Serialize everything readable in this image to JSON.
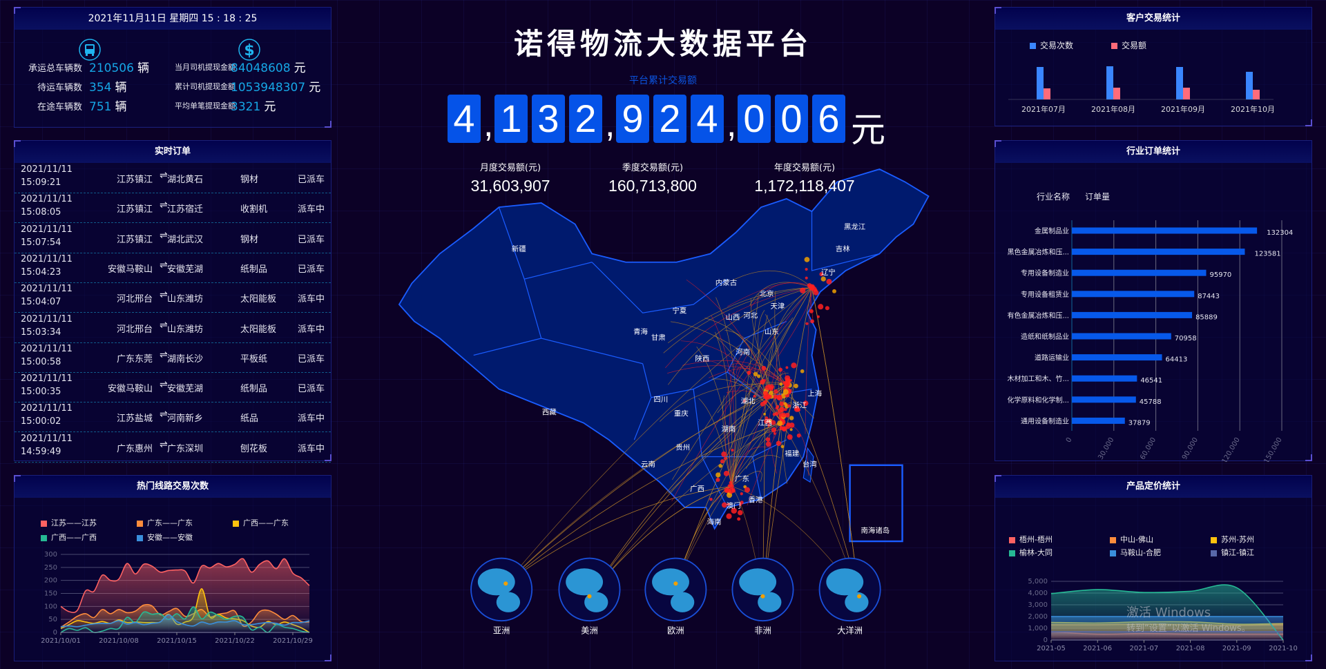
{
  "title": "诺得物流大数据平台",
  "datetime": "2021年11月11日 星期四 15 : 18 : 25",
  "vehicles": {
    "icon": "truck-icon",
    "items": [
      {
        "label": "承运总车辆数",
        "value": "210506",
        "unit": "辆"
      },
      {
        "label": "待运车辆数",
        "value": "354",
        "unit": "辆"
      },
      {
        "label": "在途车辆数",
        "value": "751",
        "unit": "辆"
      }
    ]
  },
  "withdrawals": {
    "icon": "dollar-icon",
    "items": [
      {
        "label": "当月司机提现金额",
        "value": "84048608",
        "unit": "元"
      },
      {
        "label": "累计司机提现金额",
        "value": "1053948307",
        "unit": "元"
      },
      {
        "label": "平均单笔提现金额",
        "value": "3321",
        "unit": "元"
      }
    ]
  },
  "orders": {
    "title": "实时订单",
    "arrow_icon": "route-arrow-icon",
    "rows": [
      {
        "date": "2021/11/11",
        "time": "15:09:21",
        "from": "江苏镇江",
        "to": "湖北黄石",
        "cargo": "钢材",
        "status": "已派车"
      },
      {
        "date": "2021/11/11",
        "time": "15:08:05",
        "from": "江苏镇江",
        "to": "江苏宿迁",
        "cargo": "收割机",
        "status": "派车中"
      },
      {
        "date": "2021/11/11",
        "time": "15:07:54",
        "from": "江苏镇江",
        "to": "湖北武汉",
        "cargo": "钢材",
        "status": "已派车"
      },
      {
        "date": "2021/11/11",
        "time": "15:04:23",
        "from": "安徽马鞍山",
        "to": "安徽芜湖",
        "cargo": "纸制品",
        "status": "已派车"
      },
      {
        "date": "2021/11/11",
        "time": "15:04:07",
        "from": "河北邢台",
        "to": "山东潍坊",
        "cargo": "太阳能板",
        "status": "派车中"
      },
      {
        "date": "2021/11/11",
        "time": "15:03:34",
        "from": "河北邢台",
        "to": "山东潍坊",
        "cargo": "太阳能板",
        "status": "派车中"
      },
      {
        "date": "2021/11/11",
        "time": "15:00:58",
        "from": "广东东莞",
        "to": "湖南长沙",
        "cargo": "平板纸",
        "status": "已派车"
      },
      {
        "date": "2021/11/11",
        "time": "15:00:35",
        "from": "安徽马鞍山",
        "to": "安徽芜湖",
        "cargo": "纸制品",
        "status": "已派车"
      },
      {
        "date": "2021/11/11",
        "time": "15:00:02",
        "from": "江苏盐城",
        "to": "河南新乡",
        "cargo": "纸品",
        "status": "派车中"
      },
      {
        "date": "2021/11/11",
        "time": "14:59:49",
        "from": "广东惠州",
        "to": "广东深圳",
        "cargo": "刨花板",
        "status": "派车中"
      }
    ]
  },
  "total": {
    "label": "平台累计交易额",
    "digits": [
      "4",
      "1",
      "3",
      "2",
      "9",
      "2",
      "4",
      "0",
      "0",
      "6"
    ],
    "unit": "元",
    "accent": "#0553e8"
  },
  "stats": [
    {
      "label": "月度交易额(元)",
      "value": "31,603,907"
    },
    {
      "label": "季度交易额(元)",
      "value": "160,713,800"
    },
    {
      "label": "年度交易额(元)",
      "value": "1,172,118,407"
    }
  ],
  "map": {
    "provinces": [
      "新疆",
      "西藏",
      "青海",
      "甘肃",
      "宁夏",
      "内蒙古",
      "陕西",
      "四川",
      "重庆",
      "云南",
      "贵州",
      "广西",
      "海南",
      "广东",
      "澳门",
      "香港",
      "湖南",
      "湖北",
      "河南",
      "山西",
      "河北",
      "北京",
      "天津",
      "山东",
      "上海",
      "浙江",
      "江西",
      "福建",
      "台湾",
      "辽宁",
      "吉林",
      "黑龙江",
      "南海诸岛"
    ],
    "continents": [
      "亚洲",
      "美洲",
      "欧洲",
      "非洲",
      "大洋洲"
    ]
  },
  "watermark": {
    "line1": "激活 Windows",
    "line2": "转到“设置”以激活 Windows。"
  },
  "chart_data": [
    {
      "id": "routes",
      "type": "area",
      "title": "热门线路交易次数",
      "ylim": [
        0,
        300
      ],
      "yticks": [
        0,
        50,
        100,
        150,
        200,
        250,
        300
      ],
      "x": [
        "2021/10/01",
        "2021/10/02",
        "2021/10/03",
        "2021/10/04",
        "2021/10/05",
        "2021/10/06",
        "2021/10/07",
        "2021/10/08",
        "2021/10/09",
        "2021/10/10",
        "2021/10/11",
        "2021/10/12",
        "2021/10/13",
        "2021/10/14",
        "2021/10/15",
        "2021/10/16",
        "2021/10/17",
        "2021/10/18",
        "2021/10/19",
        "2021/10/20",
        "2021/10/21",
        "2021/10/22",
        "2021/10/23",
        "2021/10/24",
        "2021/10/25",
        "2021/10/26",
        "2021/10/27",
        "2021/10/28",
        "2021/10/29",
        "2021/10/30",
        "2021/10/31"
      ],
      "xticks": [
        "2021/10/01",
        "2021/10/08",
        "2021/10/15",
        "2021/10/22",
        "2021/10/29"
      ],
      "series": [
        {
          "name": "江苏——江苏",
          "color": "#ff6262",
          "values": [
            100,
            80,
            85,
            160,
            158,
            220,
            200,
            205,
            265,
            225,
            262,
            255,
            232,
            238,
            240,
            236,
            190,
            255,
            248,
            265,
            252,
            262,
            283,
            232,
            262,
            275,
            245,
            283,
            228,
            210,
            180
          ]
        },
        {
          "name": "广东——广东",
          "color": "#ff8c3c",
          "values": [
            20,
            40,
            62,
            72,
            57,
            88,
            72,
            88,
            76,
            82,
            105,
            102,
            68,
            80,
            92,
            62,
            72,
            88,
            60,
            70,
            75,
            82,
            25,
            40,
            80,
            85,
            70,
            50,
            65,
            42,
            40
          ]
        },
        {
          "name": "广西——广东",
          "color": "#ffc20e",
          "values": [
            15,
            30,
            45,
            40,
            35,
            42,
            35,
            48,
            38,
            40,
            38,
            38,
            40,
            70,
            32,
            40,
            60,
            168,
            60,
            70,
            55,
            52,
            45,
            25,
            20,
            42,
            30,
            40,
            30,
            18,
            0
          ]
        },
        {
          "name": "广西——广西",
          "color": "#26b994",
          "values": [
            0,
            15,
            8,
            18,
            0,
            5,
            15,
            15,
            58,
            38,
            78,
            70,
            72,
            50,
            72,
            52,
            98,
            52,
            78,
            65,
            50,
            62,
            58,
            10,
            20,
            0,
            30,
            20,
            15,
            5,
            0
          ]
        },
        {
          "name": "安徽——安徽",
          "color": "#3a8fdc",
          "values": [
            22,
            25,
            22,
            28,
            33,
            35,
            35,
            45,
            32,
            38,
            30,
            35,
            40,
            68,
            42,
            30,
            25,
            40,
            32,
            40,
            40,
            45,
            30,
            30,
            35,
            38,
            35,
            28,
            38,
            38,
            45
          ]
        }
      ]
    },
    {
      "id": "customers",
      "type": "bar",
      "title": "客户交易统计",
      "categories": [
        "2021年07月",
        "2021年08月",
        "2021年09月",
        "2021年10月"
      ],
      "series": [
        {
          "name": "交易次数",
          "color": "#3a86ff",
          "values": [
            47,
            48,
            47,
            40
          ]
        },
        {
          "name": "交易额",
          "color": "#ff6b7a",
          "values": [
            16,
            17,
            17,
            14
          ]
        }
      ]
    },
    {
      "id": "industry",
      "type": "bar",
      "orientation": "horizontal",
      "title": "行业订单统计",
      "header": [
        "行业名称",
        "订单量"
      ],
      "xlim": [
        0,
        150000
      ],
      "xticks": [
        "0",
        "30,000",
        "60,000",
        "90,000",
        "120,000",
        "150,000"
      ],
      "color": "#0759ea",
      "categories": [
        "金属制品业",
        "黑色金属冶炼和压...",
        "专用设备制造业",
        "专用设备租赁业",
        "有色金属冶炼和压...",
        "造纸和纸制品业",
        "道路运输业",
        "木材加工和木、竹...",
        "化学原料和化学制...",
        "通用设备制造业"
      ],
      "values": [
        132304,
        123581,
        95970,
        87443,
        85889,
        70958,
        64413,
        46541,
        45788,
        37879
      ]
    },
    {
      "id": "pricing",
      "type": "area",
      "title": "产品定价统计",
      "ylim": [
        0,
        5000
      ],
      "yticks": [
        "0",
        "1,000",
        "2,000",
        "3,000",
        "4,000",
        "5,000"
      ],
      "x": [
        "2021-05",
        "2021-06",
        "2021-07",
        "2021-08",
        "2021-09",
        "2021-10"
      ],
      "series": [
        {
          "name": "梧州-梧州",
          "color": "#ff6262",
          "values": [
            700,
            500,
            550,
            500,
            500,
            500
          ]
        },
        {
          "name": "中山-佛山",
          "color": "#ff8c3c",
          "values": [
            1300,
            1300,
            1350,
            1300,
            1250,
            1300
          ]
        },
        {
          "name": "苏州-苏州",
          "color": "#ffc20e",
          "values": [
            1500,
            1450,
            1550,
            1550,
            1350,
            1400
          ]
        },
        {
          "name": "榆林-大同",
          "color": "#26b994",
          "values": [
            3950,
            4300,
            4050,
            4150,
            4450,
            0
          ]
        },
        {
          "name": "马鞍山-合肥",
          "color": "#3a8fdc",
          "values": [
            2000,
            2000,
            2000,
            2000,
            2000,
            2000
          ]
        },
        {
          "name": "镇江-镇江",
          "color": "#5868a8",
          "values": [
            700,
            700,
            700,
            750,
            700,
            700
          ]
        }
      ]
    }
  ]
}
